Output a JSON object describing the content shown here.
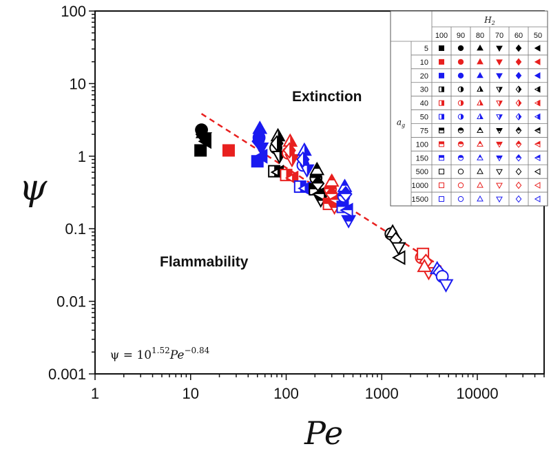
{
  "chart_data": {
    "type": "scatter",
    "xlabel": "Pe",
    "ylabel": "ψ",
    "xscale": "log",
    "yscale": "log",
    "xlim": [
      1,
      50000
    ],
    "ylim": [
      0.001,
      100
    ],
    "x_ticks": [
      "1",
      "10",
      "100",
      "1000",
      "10000"
    ],
    "y_ticks": [
      "0.001",
      "0.01",
      "0.1",
      "1",
      "10",
      "100"
    ],
    "grid": false,
    "annotations": {
      "extinction": "Extinction",
      "flammability": "Flammability",
      "equation": {
        "lhs": "ψ = 10",
        "exp1": "1.52",
        "mid": "Pe",
        "exp2": "−0.84"
      }
    },
    "fit_line": {
      "coef_log10": 1.52,
      "exponent": -0.84,
      "x_range": [
        13,
        4200
      ],
      "color": "#e8201f",
      "style": "dashed"
    },
    "legend": {
      "placement": "top-right",
      "column_group_label": "H2",
      "row_group_label": "ag",
      "h2_values": [
        100,
        90,
        80,
        70,
        60,
        50
      ],
      "h2_shapes": [
        "square",
        "circle",
        "triangle-up",
        "triangle-down",
        "diamond",
        "triangle-left"
      ],
      "ag_values": [
        5,
        10,
        20,
        30,
        40,
        50,
        75,
        100,
        150,
        500,
        1000,
        1500
      ],
      "ag_colors": [
        "#000000",
        "#e8201f",
        "#1a1af0",
        "#000000",
        "#e8201f",
        "#1a1af0",
        "#000000",
        "#e8201f",
        "#1a1af0",
        "#000000",
        "#e8201f",
        "#1a1af0"
      ],
      "ag_fills": [
        "full",
        "full",
        "full",
        "half-right",
        "half-right",
        "half-right",
        "half-top",
        "half-top",
        "half-top",
        "open",
        "open",
        "open"
      ]
    },
    "points_columns": [
      "Pe",
      "psi",
      "ag",
      "H2"
    ],
    "points": [
      [
        12.7,
        1.2,
        5,
        100
      ],
      [
        13,
        2.3,
        5,
        90
      ],
      [
        13.5,
        2.1,
        5,
        80
      ],
      [
        14,
        1.8,
        5,
        70
      ],
      [
        13.2,
        2.0,
        5,
        60
      ],
      [
        14.5,
        1.6,
        5,
        50
      ],
      [
        25,
        1.2,
        10,
        100
      ],
      [
        50,
        0.85,
        20,
        100
      ],
      [
        52,
        1.8,
        20,
        90
      ],
      [
        53,
        2.4,
        20,
        80
      ],
      [
        55,
        1.3,
        20,
        70
      ],
      [
        51,
        1.6,
        20,
        60
      ],
      [
        56,
        1.0,
        20,
        50
      ],
      [
        75,
        0.62,
        30,
        100
      ],
      [
        78,
        1.3,
        30,
        90
      ],
      [
        82,
        1.9,
        30,
        80
      ],
      [
        85,
        1.0,
        30,
        70
      ],
      [
        80,
        1.5,
        30,
        60
      ],
      [
        83,
        0.6,
        30,
        50
      ],
      [
        100,
        0.55,
        40,
        100
      ],
      [
        105,
        1.1,
        40,
        90
      ],
      [
        110,
        1.6,
        40,
        80
      ],
      [
        115,
        0.9,
        40,
        70
      ],
      [
        108,
        1.2,
        40,
        60
      ],
      [
        118,
        0.5,
        40,
        50
      ],
      [
        140,
        0.38,
        50,
        100
      ],
      [
        150,
        0.75,
        50,
        90
      ],
      [
        155,
        1.2,
        50,
        80
      ],
      [
        165,
        0.65,
        50,
        70
      ],
      [
        150,
        0.9,
        50,
        60
      ],
      [
        160,
        0.36,
        50,
        50
      ],
      [
        200,
        0.35,
        75,
        100
      ],
      [
        205,
        0.5,
        75,
        90
      ],
      [
        210,
        0.65,
        75,
        80
      ],
      [
        230,
        0.25,
        75,
        70
      ],
      [
        215,
        0.42,
        75,
        60
      ],
      [
        225,
        0.3,
        75,
        50
      ],
      [
        280,
        0.22,
        100,
        100
      ],
      [
        290,
        0.35,
        100,
        90
      ],
      [
        300,
        0.45,
        100,
        80
      ],
      [
        320,
        0.2,
        100,
        70
      ],
      [
        300,
        0.3,
        100,
        60
      ],
      [
        330,
        0.25,
        100,
        50
      ],
      [
        390,
        0.2,
        150,
        100
      ],
      [
        400,
        0.28,
        150,
        90
      ],
      [
        410,
        0.38,
        150,
        80
      ],
      [
        450,
        0.13,
        150,
        70
      ],
      [
        420,
        0.3,
        150,
        60
      ],
      [
        440,
        0.18,
        150,
        50
      ],
      [
        1250,
        0.085,
        500,
        90
      ],
      [
        1300,
        0.09,
        500,
        80
      ],
      [
        1400,
        0.07,
        500,
        60
      ],
      [
        1500,
        0.055,
        500,
        70
      ],
      [
        1550,
        0.04,
        500,
        50
      ],
      [
        2600,
        0.04,
        1000,
        90
      ],
      [
        2700,
        0.045,
        1000,
        100
      ],
      [
        2900,
        0.035,
        1000,
        60
      ],
      [
        3100,
        0.025,
        1000,
        70
      ],
      [
        2800,
        0.03,
        1000,
        80
      ],
      [
        3800,
        0.028,
        1500,
        80
      ],
      [
        4000,
        0.025,
        1500,
        60
      ],
      [
        4300,
        0.022,
        1500,
        90
      ],
      [
        4700,
        0.017,
        1500,
        70
      ]
    ]
  }
}
